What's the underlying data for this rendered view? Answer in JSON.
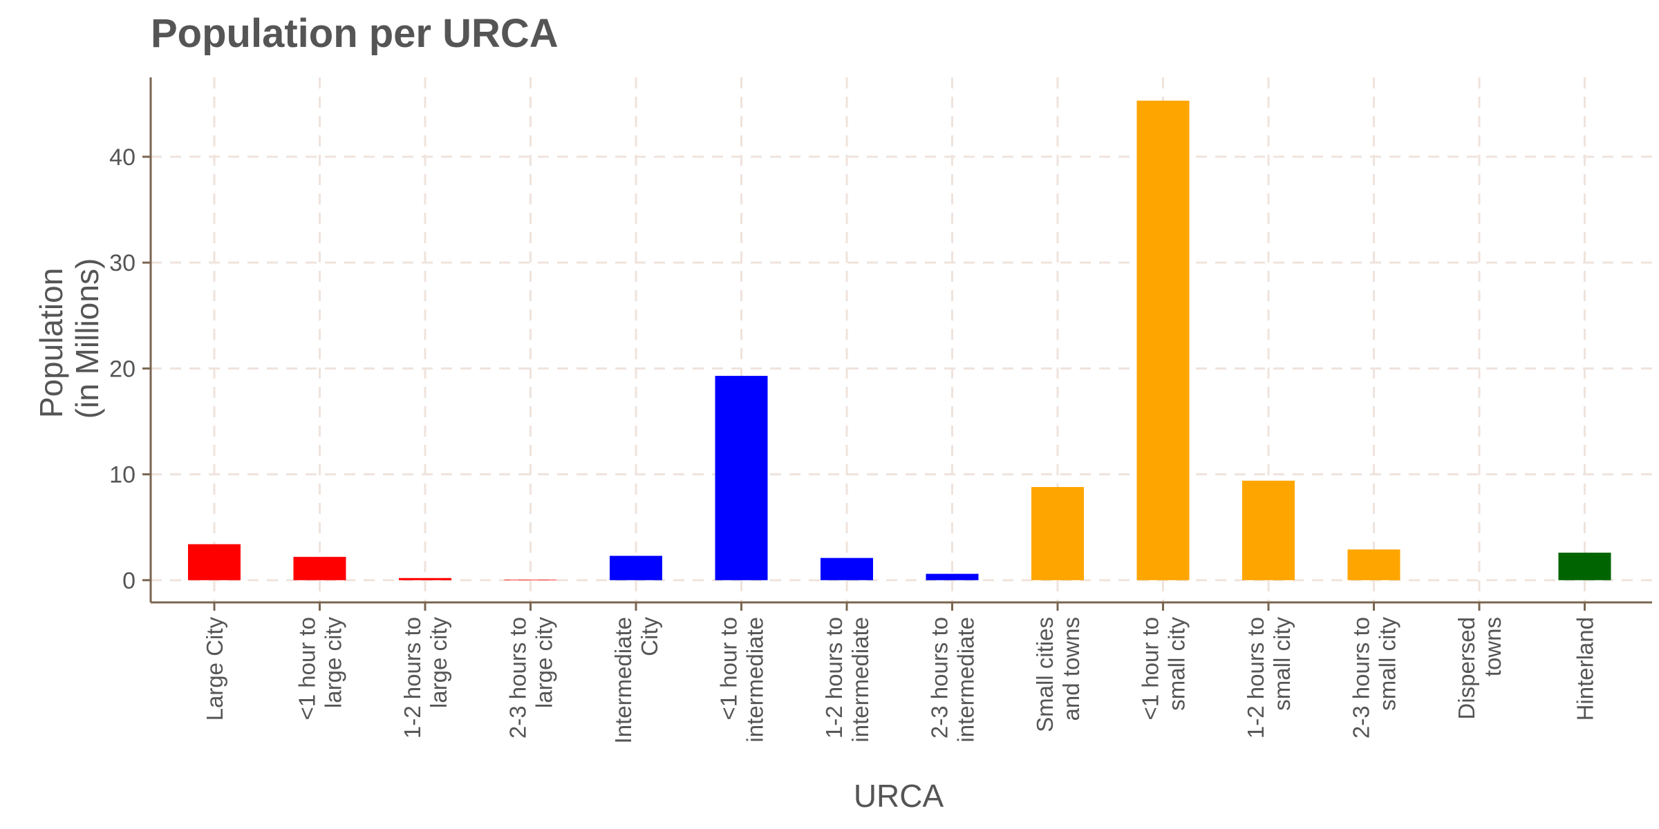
{
  "chart_data": {
    "type": "bar",
    "title": "Population per URCA",
    "xlabel": "URCA",
    "ylabel": [
      "Population",
      "(in Millions)"
    ],
    "ylim": [
      -2.1,
      47.5
    ],
    "yticks": [
      0,
      10,
      20,
      30,
      40
    ],
    "grid": true,
    "categories": [
      [
        "Large City"
      ],
      [
        "<1 hour to",
        "large city"
      ],
      [
        "1-2 hours to",
        "large city"
      ],
      [
        "2-3 hours to",
        "large city"
      ],
      [
        "Intermediate",
        "City"
      ],
      [
        "<1 hour to",
        "intermediate"
      ],
      [
        "1-2 hours to",
        "intermediate"
      ],
      [
        "2-3 hours to",
        "intermediate"
      ],
      [
        "Small cities",
        "and towns"
      ],
      [
        "<1 hour to",
        "small city"
      ],
      [
        "1-2 hours to",
        "small city"
      ],
      [
        "2-3 hours to",
        "small city"
      ],
      [
        "Dispersed",
        "towns"
      ],
      [
        "Hinterland"
      ]
    ],
    "values": [
      3.4,
      2.2,
      0.2,
      0.05,
      2.3,
      19.3,
      2.1,
      0.6,
      8.8,
      45.3,
      9.4,
      2.9,
      0.0,
      2.6
    ],
    "colors": [
      "#ff0000",
      "#ff0000",
      "#ff0000",
      "#ff0000",
      "#0000ff",
      "#0000ff",
      "#0000ff",
      "#0000ff",
      "#ffa500",
      "#ffa500",
      "#ffa500",
      "#ffa500",
      "#ffa500",
      "#006400"
    ]
  }
}
